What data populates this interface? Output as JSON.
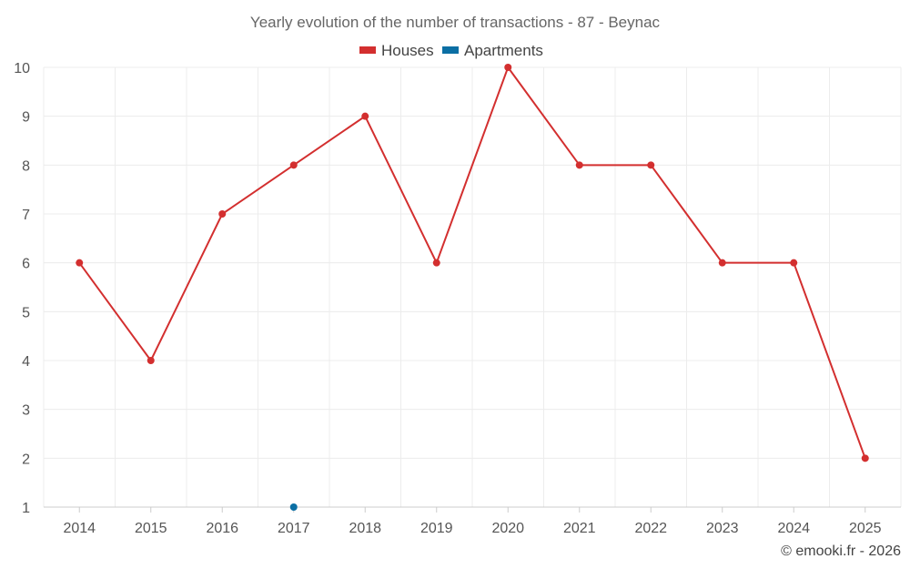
{
  "chart_data": {
    "type": "line",
    "title": "Yearly evolution of the number of transactions - 87 - Beynac",
    "categories": [
      "2014",
      "2015",
      "2016",
      "2017",
      "2018",
      "2019",
      "2020",
      "2021",
      "2022",
      "2023",
      "2024",
      "2025"
    ],
    "series": [
      {
        "name": "Houses",
        "color": "#d32f2f",
        "values": [
          6,
          4,
          7,
          8,
          9,
          6,
          10,
          8,
          8,
          6,
          6,
          2
        ]
      },
      {
        "name": "Apartments",
        "color": "#0b6fa4",
        "values": [
          null,
          null,
          null,
          1,
          null,
          null,
          null,
          null,
          null,
          null,
          null,
          null
        ]
      }
    ],
    "yticks": [
      1,
      2,
      3,
      4,
      5,
      6,
      7,
      8,
      9,
      10
    ],
    "ylim": [
      1,
      10
    ],
    "xlabel": "",
    "ylabel": "",
    "grid": true,
    "legend": "top-center"
  },
  "credit": "© emooki.fr - 2026"
}
